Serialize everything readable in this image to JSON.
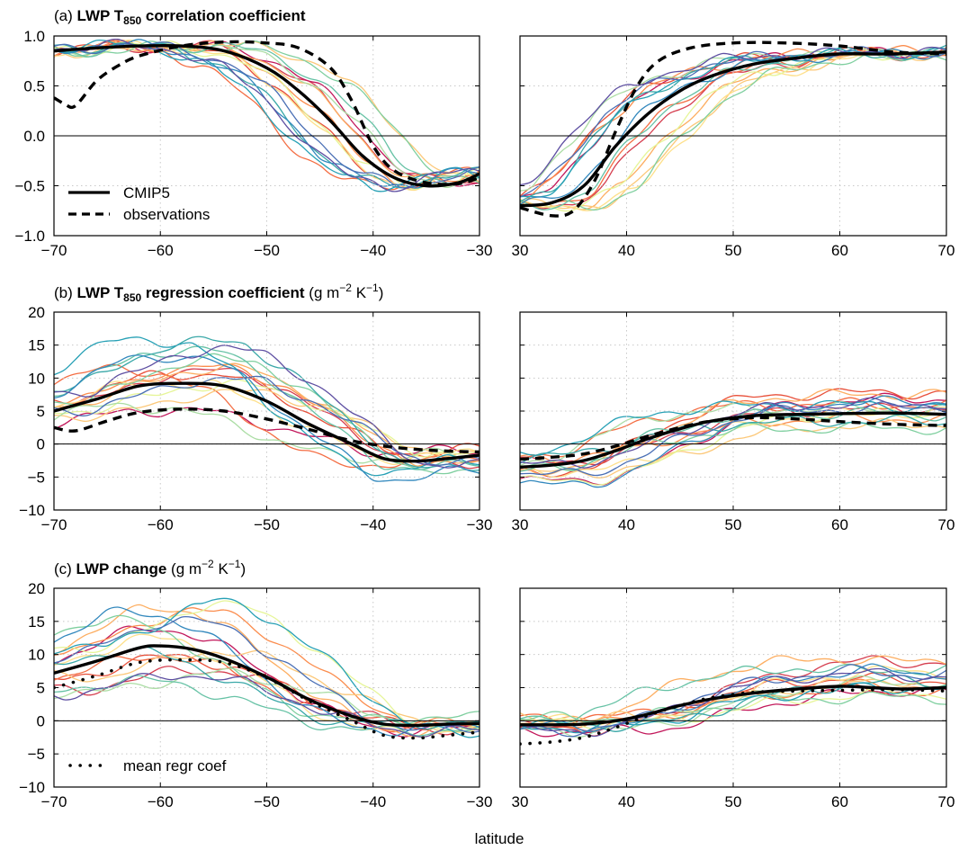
{
  "figure": {
    "xlabel": "latitude",
    "row_titles": [
      {
        "prefix": "(a) ",
        "bold": "LWP T",
        "sub": "850",
        "bold2": " correlation coefficient",
        "unit_pre": "",
        "unit_sup": "",
        "unit_mid": "",
        "unit_sup2": "",
        "unit_post": ""
      },
      {
        "prefix": "(b) ",
        "bold": "LWP T",
        "sub": "850",
        "bold2": " regression coefficient",
        "unit_pre": " (g m",
        "unit_sup": "−2",
        "unit_mid": " K",
        "unit_sup2": "−1",
        "unit_post": ")"
      },
      {
        "prefix": "(c) ",
        "bold": "LWP change",
        "sub": "",
        "bold2": "",
        "unit_pre": " (g m",
        "unit_sup": "−2",
        "unit_mid": " K",
        "unit_sup2": "−1",
        "unit_post": ")"
      }
    ],
    "legend_a": [
      "CMIP5",
      "observations"
    ],
    "legend_c": [
      "mean regr coef"
    ],
    "model_palette": [
      "#d53e4f",
      "#c2185b",
      "#e8503a",
      "#f46d43",
      "#fb8d4e",
      "#fdae61",
      "#fcc879",
      "#fee08b",
      "#e6f598",
      "#abdda4",
      "#7fcf9f",
      "#66c2a5",
      "#3aa8a8",
      "#26a0b5",
      "#3288bd",
      "#4a6fb5",
      "#5e4fa2"
    ]
  },
  "chart_data": [
    {
      "type": "line",
      "panel": "a-south",
      "title": "LWP T850 correlation coefficient",
      "xlim": [
        -70,
        -30
      ],
      "ylim": [
        -1.0,
        1.0
      ],
      "xticks": [
        "-70",
        "-60",
        "-50",
        "-40",
        "-30"
      ],
      "yticks": [
        "-1.0",
        "-0.5",
        "0.0",
        "0.5",
        "1.0"
      ],
      "series": [
        {
          "name": "CMIP5",
          "style": "solid",
          "x": [
            -70,
            -66,
            -62,
            -58,
            -54,
            -50,
            -47,
            -44,
            -41,
            -38,
            -35,
            -32,
            -30
          ],
          "y": [
            0.85,
            0.88,
            0.9,
            0.9,
            0.85,
            0.68,
            0.45,
            0.15,
            -0.2,
            -0.42,
            -0.5,
            -0.47,
            -0.38
          ]
        },
        {
          "name": "observations",
          "style": "dashed",
          "x": [
            -70,
            -69,
            -68,
            -66,
            -64,
            -62,
            -58,
            -54,
            -50,
            -47,
            -44,
            -42,
            -40,
            -38,
            -35,
            -32,
            -30
          ],
          "y": [
            0.38,
            0.32,
            0.3,
            0.55,
            0.7,
            0.8,
            0.9,
            0.94,
            0.93,
            0.88,
            0.68,
            0.35,
            -0.1,
            -0.35,
            -0.47,
            -0.48,
            -0.42
          ]
        }
      ]
    },
    {
      "type": "line",
      "panel": "a-north",
      "xlim": [
        30,
        70
      ],
      "ylim": [
        -1.0,
        1.0
      ],
      "xticks": [
        "30",
        "40",
        "50",
        "60",
        "70"
      ],
      "series": [
        {
          "name": "CMIP5",
          "style": "solid",
          "x": [
            30,
            33,
            36,
            39,
            42,
            45,
            48,
            52,
            56,
            60,
            65,
            70
          ],
          "y": [
            -0.7,
            -0.67,
            -0.5,
            -0.1,
            0.22,
            0.45,
            0.6,
            0.72,
            0.78,
            0.82,
            0.82,
            0.84
          ]
        },
        {
          "name": "observations",
          "style": "dashed",
          "x": [
            30,
            33,
            35,
            37,
            39,
            41,
            43,
            46,
            50,
            55,
            60,
            65,
            70
          ],
          "y": [
            -0.72,
            -0.8,
            -0.75,
            -0.45,
            0.05,
            0.5,
            0.75,
            0.88,
            0.93,
            0.93,
            0.9,
            0.84,
            0.82
          ]
        }
      ]
    },
    {
      "type": "line",
      "panel": "b-south",
      "title": "LWP T850 regression coefficient",
      "xlim": [
        -70,
        -30
      ],
      "ylim": [
        -10,
        20
      ],
      "xticks": [
        "-70",
        "-60",
        "-50",
        "-40",
        "-30"
      ],
      "yticks": [
        "-10",
        "-5",
        "0",
        "5",
        "10",
        "15",
        "20"
      ],
      "series": [
        {
          "name": "CMIP5",
          "style": "solid",
          "x": [
            -70,
            -66,
            -62,
            -58,
            -54,
            -50,
            -46,
            -42,
            -39,
            -36,
            -33,
            -30
          ],
          "y": [
            5,
            6.8,
            8.8,
            9.2,
            8.8,
            6.5,
            3,
            0,
            -2.2,
            -2.6,
            -2.2,
            -1.7
          ]
        },
        {
          "name": "observations",
          "style": "dashed",
          "x": [
            -70,
            -68,
            -65,
            -62,
            -58,
            -54,
            -50,
            -46,
            -42,
            -38,
            -34,
            -30
          ],
          "y": [
            2.5,
            2.0,
            3.5,
            4.8,
            5.3,
            5.0,
            3.8,
            2.2,
            0.5,
            -0.5,
            -1.0,
            -1.2
          ]
        }
      ]
    },
    {
      "type": "line",
      "panel": "b-north",
      "xlim": [
        30,
        70
      ],
      "ylim": [
        -10,
        20
      ],
      "xticks": [
        "30",
        "40",
        "50",
        "60",
        "70"
      ],
      "series": [
        {
          "name": "CMIP5",
          "style": "solid",
          "x": [
            30,
            33,
            36,
            39,
            42,
            45,
            48,
            52,
            56,
            60,
            65,
            70
          ],
          "y": [
            -3.5,
            -3.2,
            -2.5,
            -1.0,
            0.8,
            2.3,
            3.5,
            4.3,
            4.5,
            4.6,
            4.7,
            4.5
          ]
        },
        {
          "name": "observations",
          "style": "dashed",
          "x": [
            30,
            33,
            36,
            39,
            42,
            45,
            48,
            52,
            56,
            60,
            65,
            70
          ],
          "y": [
            -2.3,
            -2.0,
            -1.5,
            -0.3,
            1.2,
            2.5,
            3.5,
            4.0,
            3.8,
            3.4,
            3.0,
            2.8
          ]
        }
      ]
    },
    {
      "type": "line",
      "panel": "c-south",
      "title": "LWP change",
      "xlim": [
        -70,
        -30
      ],
      "ylim": [
        -10,
        20
      ],
      "xticks": [
        "-70",
        "-60",
        "-50",
        "-40",
        "-30"
      ],
      "yticks": [
        "-10",
        "-5",
        "0",
        "5",
        "10",
        "15",
        "20"
      ],
      "series": [
        {
          "name": "CMIP5",
          "style": "solid",
          "x": [
            -70,
            -66,
            -62,
            -60,
            -57,
            -54,
            -50,
            -46,
            -42,
            -39,
            -36,
            -33,
            -30
          ],
          "y": [
            7.2,
            9.0,
            11.0,
            11.3,
            10.8,
            9.4,
            6.6,
            3.2,
            0.7,
            -0.5,
            -0.7,
            -0.5,
            -0.4
          ]
        },
        {
          "name": "mean regr coef",
          "style": "dotted",
          "x": [
            -70,
            -66,
            -62,
            -58,
            -54,
            -50,
            -46,
            -42,
            -39,
            -36,
            -33,
            -30
          ],
          "y": [
            5.0,
            6.8,
            8.8,
            9.2,
            8.8,
            6.5,
            3.0,
            0.0,
            -2.2,
            -2.6,
            -2.2,
            -1.7
          ]
        }
      ]
    },
    {
      "type": "line",
      "panel": "c-north",
      "xlim": [
        30,
        70
      ],
      "ylim": [
        -10,
        20
      ],
      "xticks": [
        "30",
        "40",
        "50",
        "60",
        "70"
      ],
      "series": [
        {
          "name": "CMIP5",
          "style": "solid",
          "x": [
            30,
            33,
            36,
            39,
            42,
            45,
            48,
            52,
            56,
            60,
            63,
            66,
            70
          ],
          "y": [
            -0.6,
            -0.6,
            -0.5,
            0.0,
            1.0,
            2.3,
            3.3,
            4.2,
            4.8,
            5.2,
            5.0,
            4.8,
            5.0
          ]
        },
        {
          "name": "mean regr coef",
          "style": "dotted",
          "x": [
            30,
            33,
            36,
            39,
            42,
            45,
            48,
            52,
            56,
            60,
            65,
            70
          ],
          "y": [
            -3.5,
            -3.2,
            -2.5,
            -1.0,
            0.8,
            2.3,
            3.5,
            4.3,
            4.5,
            4.6,
            4.7,
            4.5
          ]
        }
      ]
    }
  ]
}
